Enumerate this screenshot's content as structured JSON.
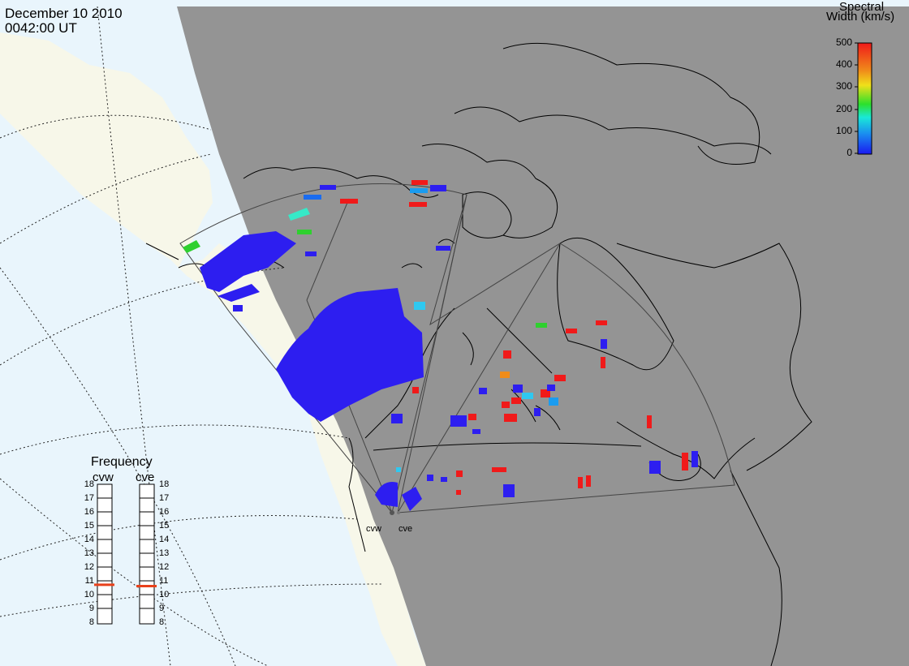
{
  "header": {
    "date": "December 10 2010",
    "time": "0042:00 UT"
  },
  "colorbar": {
    "title_line1": "Spectral",
    "title_line2": "Width (km/s)",
    "ticks": [
      "500",
      "400",
      "300",
      "200",
      "100",
      "0"
    ]
  },
  "frequency_panel": {
    "title": "Frequency",
    "radars": [
      {
        "name": "cvw",
        "frequency_mhz": 10.8
      },
      {
        "name": "cve",
        "frequency_mhz": 10.7
      }
    ],
    "scale_labels": [
      "18",
      "17",
      "16",
      "15",
      "14",
      "13",
      "12",
      "11",
      "10",
      "9",
      "8"
    ]
  },
  "sites": {
    "west": "cvw",
    "east": "cve"
  },
  "colors": {
    "ocean": "#e9f5fc",
    "night": "#949494",
    "land_day": "#f7f7e9",
    "fov_outline": "#444444",
    "freq_marker": "#e8401a"
  }
}
